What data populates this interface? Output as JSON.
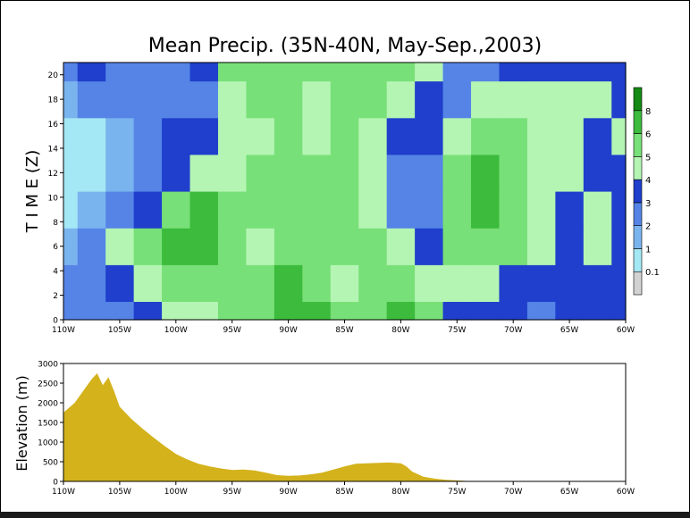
{
  "chart_data": [
    {
      "type": "heatmap",
      "title": "Mean Precip. (35N-40N, May-Sep.,2003)",
      "xlabel": "",
      "ylabel": "T I M E (Z)",
      "xlim": [
        -110,
        -60
      ],
      "ylim": [
        0,
        21
      ],
      "x_tick_labels": [
        "110W",
        "105W",
        "100W",
        "95W",
        "90W",
        "85W",
        "80W",
        "75W",
        "70W",
        "65W",
        "60W"
      ],
      "y_tick_labels": [
        "0",
        "2",
        "4",
        "6",
        "8",
        "10",
        "12",
        "14",
        "16",
        "18",
        "20"
      ],
      "legend_placement": "right",
      "colorbar": {
        "levels": [
          "0.1",
          "1",
          "2",
          "3",
          "4",
          "5",
          "6",
          "8"
        ],
        "colors": [
          "#d2d2d2",
          "#a5e8f5",
          "#7ab4ee",
          "#5584e6",
          "#1f3fcc",
          "#b4f5b4",
          "#78e078",
          "#3cbb3c",
          "#158a15"
        ]
      },
      "x": [
        -110,
        -107.5,
        -105,
        -102.5,
        -100,
        -97.5,
        -95,
        -92.5,
        -90,
        -87.5,
        -85,
        -82.5,
        -80,
        -77.5,
        -75,
        -72.5,
        -70,
        -67.5,
        -65,
        -62.5,
        -60
      ],
      "y": [
        0,
        3,
        6,
        9,
        12,
        15,
        18,
        21
      ],
      "values": [
        [
          3,
          3,
          3,
          4,
          5,
          5,
          6,
          6,
          7,
          7,
          6,
          6,
          7,
          6,
          4,
          4,
          4,
          3,
          4,
          4,
          4
        ],
        [
          3,
          3,
          4,
          5,
          6,
          6,
          6,
          6,
          7,
          6,
          5,
          6,
          6,
          5,
          5,
          5,
          4,
          4,
          4,
          4,
          4
        ],
        [
          2,
          3,
          5,
          6,
          7,
          7,
          6,
          5,
          6,
          6,
          6,
          6,
          5,
          4,
          6,
          6,
          6,
          5,
          4,
          5,
          4
        ],
        [
          1,
          2,
          3,
          4,
          6,
          7,
          6,
          6,
          6,
          6,
          6,
          5,
          3,
          3,
          6,
          7,
          6,
          5,
          4,
          5,
          4
        ],
        [
          1,
          1,
          2,
          3,
          4,
          5,
          5,
          6,
          6,
          6,
          6,
          5,
          3,
          3,
          6,
          7,
          6,
          5,
          5,
          4,
          4
        ],
        [
          1,
          1,
          2,
          3,
          4,
          4,
          5,
          5,
          6,
          5,
          6,
          5,
          4,
          4,
          5,
          6,
          6,
          5,
          5,
          4,
          5
        ],
        [
          2,
          3,
          3,
          3,
          3,
          3,
          5,
          6,
          6,
          5,
          6,
          6,
          5,
          4,
          3,
          5,
          5,
          5,
          5,
          5,
          4
        ],
        [
          3,
          4,
          3,
          3,
          3,
          4,
          6,
          6,
          6,
          6,
          6,
          6,
          6,
          5,
          3,
          3,
          4,
          4,
          4,
          4,
          4
        ]
      ]
    },
    {
      "type": "area",
      "title": "",
      "xlabel": "",
      "ylabel": "Elevation (m)",
      "xlim": [
        -110,
        -60
      ],
      "ylim": [
        0,
        3000
      ],
      "x_tick_labels": [
        "110W",
        "105W",
        "100W",
        "95W",
        "90W",
        "85W",
        "80W",
        "75W",
        "70W",
        "65W",
        "60W"
      ],
      "y_tick_labels": [
        "0",
        "500",
        "1000",
        "1500",
        "2000",
        "2500",
        "3000"
      ],
      "color": "#d4b21c",
      "x": [
        -110,
        -109,
        -108,
        -107.5,
        -107,
        -106.5,
        -106,
        -105.5,
        -105,
        -104,
        -103,
        -102,
        -101,
        -100,
        -99,
        -98,
        -97,
        -96,
        -95,
        -94,
        -93,
        -92,
        -91,
        -90,
        -89,
        -88,
        -87,
        -86,
        -85,
        -84,
        -83,
        -82,
        -81,
        -80,
        -79.5,
        -79,
        -78,
        -77,
        -76,
        -75,
        -74,
        -73,
        -72,
        -60
      ],
      "y": [
        1750,
        2000,
        2400,
        2600,
        2750,
        2450,
        2650,
        2300,
        1900,
        1600,
        1350,
        1120,
        900,
        700,
        560,
        450,
        380,
        330,
        290,
        300,
        280,
        220,
        160,
        140,
        150,
        180,
        220,
        300,
        380,
        450,
        460,
        470,
        480,
        460,
        380,
        250,
        120,
        70,
        40,
        25,
        10,
        5,
        0,
        0
      ]
    }
  ]
}
